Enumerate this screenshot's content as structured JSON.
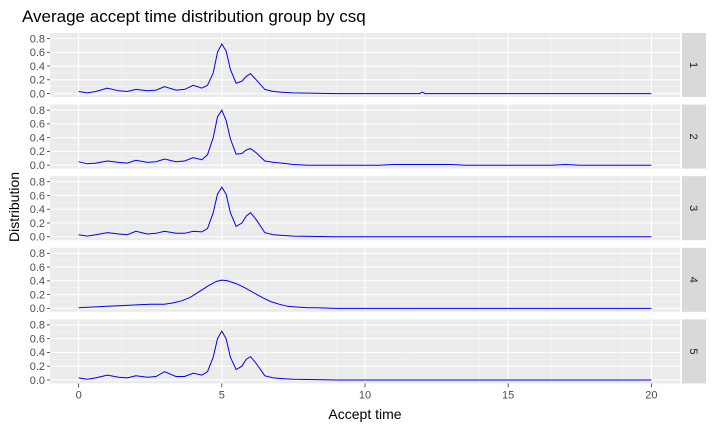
{
  "chart_data": {
    "type": "line",
    "title": "Average accept time distribution group by csq",
    "xlabel": "Accept time",
    "ylabel": "Distribution",
    "xlim": [
      -1,
      21
    ],
    "ylim": [
      -0.05,
      0.88
    ],
    "x_ticks": [
      0,
      5,
      10,
      15,
      20
    ],
    "y_ticks": [
      0.0,
      0.2,
      0.4,
      0.6,
      0.8
    ],
    "y_tick_labels": [
      "0.0",
      "0.2",
      "0.4",
      "0.6",
      "0.8"
    ],
    "grid": true,
    "line_color": "#0000ff",
    "panel_background": "#ebebeb",
    "strip_background": "#d9d9d9",
    "facets": [
      {
        "label": "1",
        "x": [
          0,
          0.3,
          0.6,
          1.0,
          1.4,
          1.7,
          2.0,
          2.4,
          2.7,
          3.0,
          3.4,
          3.7,
          4.0,
          4.3,
          4.5,
          4.7,
          4.85,
          5.0,
          5.15,
          5.3,
          5.5,
          5.7,
          5.85,
          6.0,
          6.2,
          6.5,
          6.8,
          7.1,
          7.5,
          9,
          11,
          11.9,
          12.0,
          12.1,
          14,
          16,
          18,
          20
        ],
        "y": [
          0.03,
          0.01,
          0.03,
          0.08,
          0.04,
          0.03,
          0.06,
          0.04,
          0.05,
          0.1,
          0.05,
          0.06,
          0.12,
          0.08,
          0.12,
          0.3,
          0.6,
          0.72,
          0.62,
          0.35,
          0.15,
          0.18,
          0.25,
          0.29,
          0.2,
          0.06,
          0.03,
          0.02,
          0.01,
          0.0,
          0.0,
          0.0,
          0.02,
          0.0,
          0.0,
          0.0,
          0.0,
          0.0
        ]
      },
      {
        "label": "2",
        "x": [
          0,
          0.3,
          0.6,
          1.0,
          1.4,
          1.7,
          2.0,
          2.4,
          2.7,
          3.0,
          3.4,
          3.7,
          4.0,
          4.3,
          4.5,
          4.7,
          4.85,
          5.0,
          5.15,
          5.3,
          5.5,
          5.7,
          5.85,
          6.0,
          6.2,
          6.5,
          6.8,
          7.1,
          7.5,
          8,
          10.5,
          11,
          13,
          13.5,
          16.5,
          17,
          17.5,
          20
        ],
        "y": [
          0.05,
          0.02,
          0.03,
          0.06,
          0.04,
          0.03,
          0.07,
          0.04,
          0.05,
          0.09,
          0.05,
          0.06,
          0.11,
          0.08,
          0.15,
          0.4,
          0.7,
          0.8,
          0.65,
          0.38,
          0.16,
          0.17,
          0.22,
          0.24,
          0.18,
          0.06,
          0.04,
          0.03,
          0.01,
          0.0,
          0.0,
          0.01,
          0.01,
          0.0,
          0.0,
          0.01,
          0.0,
          0.0
        ]
      },
      {
        "label": "3",
        "x": [
          0,
          0.3,
          0.6,
          1.0,
          1.4,
          1.7,
          2.0,
          2.4,
          2.7,
          3.0,
          3.4,
          3.7,
          4.0,
          4.3,
          4.5,
          4.7,
          4.85,
          5.0,
          5.15,
          5.3,
          5.5,
          5.7,
          5.85,
          6.0,
          6.2,
          6.5,
          6.8,
          7.1,
          7.5,
          9,
          11,
          14,
          17,
          20
        ],
        "y": [
          0.03,
          0.01,
          0.03,
          0.06,
          0.04,
          0.03,
          0.08,
          0.04,
          0.05,
          0.08,
          0.05,
          0.05,
          0.08,
          0.07,
          0.12,
          0.35,
          0.62,
          0.72,
          0.62,
          0.35,
          0.15,
          0.2,
          0.3,
          0.35,
          0.25,
          0.06,
          0.03,
          0.02,
          0.01,
          0.0,
          0.0,
          0.0,
          0.0,
          0.0
        ]
      },
      {
        "label": "4",
        "x": [
          0,
          0.5,
          1.0,
          1.5,
          2.0,
          2.5,
          3.0,
          3.3,
          3.6,
          3.9,
          4.2,
          4.5,
          4.8,
          5.0,
          5.2,
          5.5,
          5.8,
          6.1,
          6.4,
          6.7,
          7.0,
          7.3,
          7.6,
          8.0,
          8.3,
          9,
          11,
          14,
          17,
          20
        ],
        "y": [
          0.01,
          0.02,
          0.03,
          0.04,
          0.05,
          0.06,
          0.06,
          0.08,
          0.11,
          0.16,
          0.24,
          0.32,
          0.39,
          0.41,
          0.4,
          0.36,
          0.3,
          0.23,
          0.16,
          0.1,
          0.06,
          0.03,
          0.02,
          0.01,
          0.01,
          0.0,
          0.0,
          0.0,
          0.0,
          0.0
        ]
      },
      {
        "label": "5",
        "x": [
          0,
          0.3,
          0.6,
          1.0,
          1.4,
          1.7,
          2.0,
          2.4,
          2.7,
          3.0,
          3.4,
          3.7,
          4.0,
          4.3,
          4.5,
          4.7,
          4.85,
          5.0,
          5.15,
          5.3,
          5.5,
          5.7,
          5.85,
          6.0,
          6.2,
          6.5,
          6.8,
          7.1,
          7.5,
          9,
          11,
          14,
          17,
          20
        ],
        "y": [
          0.03,
          0.01,
          0.03,
          0.07,
          0.04,
          0.03,
          0.06,
          0.04,
          0.05,
          0.12,
          0.05,
          0.05,
          0.1,
          0.07,
          0.12,
          0.33,
          0.6,
          0.71,
          0.6,
          0.33,
          0.15,
          0.2,
          0.3,
          0.34,
          0.24,
          0.06,
          0.03,
          0.02,
          0.01,
          0.0,
          0.0,
          0.0,
          0.0,
          0.0
        ]
      }
    ]
  }
}
